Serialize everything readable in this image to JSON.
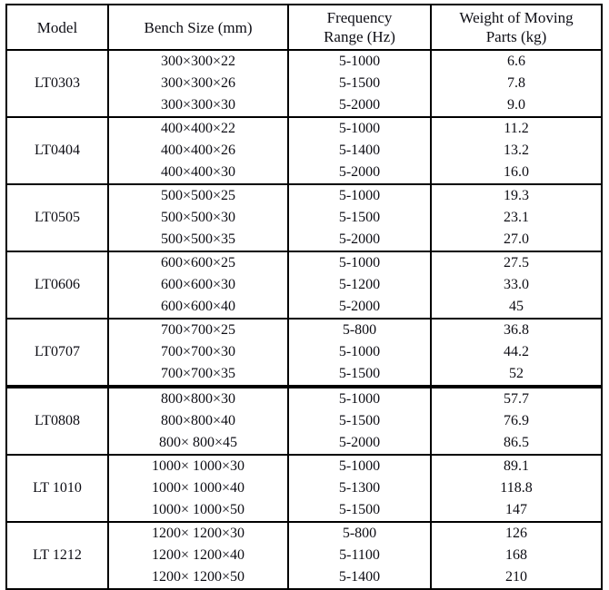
{
  "table": {
    "headers": {
      "model": "Model",
      "bench": "Bench Size (mm)",
      "frequency": "Frequency\nRange (Hz)",
      "weight": "Weight of Moving\nParts (kg)"
    },
    "border_color": "#000000",
    "text_color": "#0d0d14",
    "groups": [
      {
        "model": "LT0303",
        "rows": [
          [
            "300×300×22",
            "5-1000",
            "6.6"
          ],
          [
            "300×300×26",
            "5-1500",
            "7.8"
          ],
          [
            "300×300×30",
            "5-2000",
            "9.0"
          ]
        ]
      },
      {
        "model": "LT0404",
        "rows": [
          [
            "400×400×22",
            "5-1000",
            "11.2"
          ],
          [
            "400×400×26",
            "5-1400",
            "13.2"
          ],
          [
            "400×400×30",
            "5-2000",
            "16.0"
          ]
        ]
      },
      {
        "model": "LT0505",
        "rows": [
          [
            "500×500×25",
            "5-1000",
            "19.3"
          ],
          [
            "500×500×30",
            "5-1500",
            "23.1"
          ],
          [
            "500×500×35",
            "5-2000",
            "27.0"
          ]
        ]
      },
      {
        "model": "LT0606",
        "rows": [
          [
            "600×600×25",
            "5-1000",
            "27.5"
          ],
          [
            "600×600×30",
            "5-1200",
            "33.0"
          ],
          [
            "600×600×40",
            "5-2000",
            "45"
          ]
        ]
      },
      {
        "model": "LT0707",
        "rows": [
          [
            "700×700×25",
            "5-800",
            "36.8"
          ],
          [
            "700×700×30",
            "5-1000",
            "44.2"
          ],
          [
            "700×700×35",
            "5-1500",
            "52"
          ]
        ]
      },
      {
        "model": "LT0808",
        "rows": [
          [
            "800×800×30",
            "5-1000",
            "57.7"
          ],
          [
            "800×800×40",
            "5-1500",
            "76.9"
          ],
          [
            "800× 800×45",
            "5-2000",
            "86.5"
          ]
        ]
      },
      {
        "model": "LT 1010",
        "rows": [
          [
            "1000× 1000×30",
            "5-1000",
            "89.1"
          ],
          [
            "1000× 1000×40",
            "5-1300",
            "118.8"
          ],
          [
            "1000× 1000×50",
            "5-1500",
            "147"
          ]
        ]
      },
      {
        "model": "LT 1212",
        "rows": [
          [
            "1200× 1200×30",
            "5-800",
            "126"
          ],
          [
            "1200× 1200×40",
            "5-1100",
            "168"
          ],
          [
            "1200× 1200×50",
            "5-1400",
            "210"
          ]
        ]
      }
    ]
  }
}
